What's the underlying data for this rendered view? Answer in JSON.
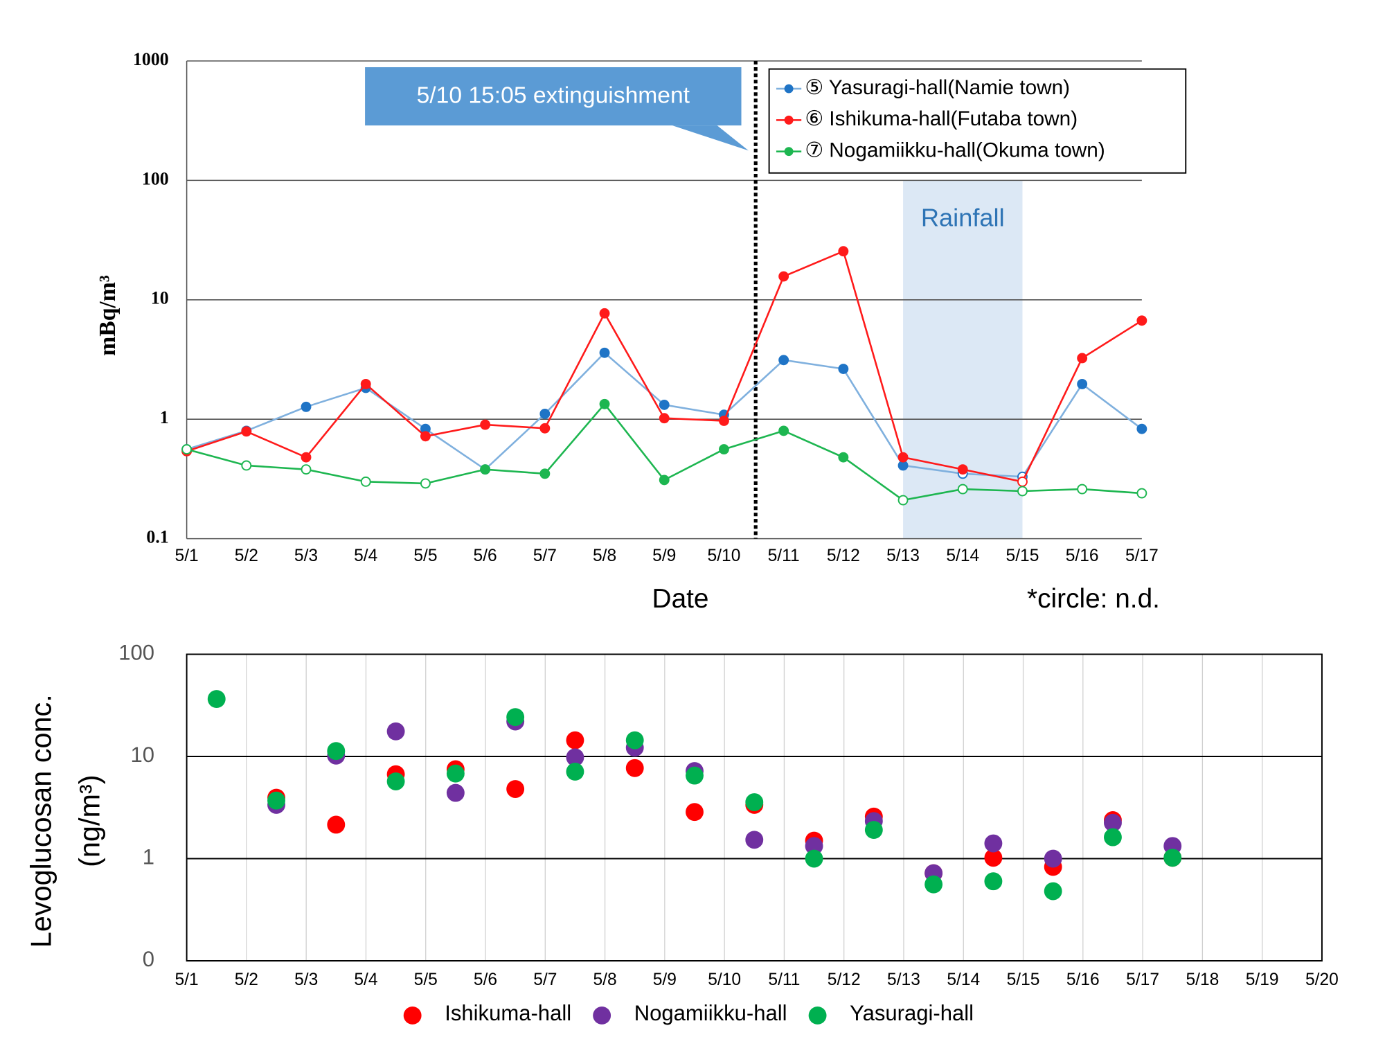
{
  "chart_data": [
    {
      "type": "line",
      "ylabel": "mBq/m³",
      "xlabel": "Date",
      "note": "*circle: n.d.",
      "annotation": "5/10 15:05 extinguishment",
      "shade": {
        "label": "Rainfall",
        "from": "5/13",
        "to": "5/15"
      },
      "categories": [
        "5/1",
        "5/2",
        "5/3",
        "5/4",
        "5/5",
        "5/6",
        "5/7",
        "5/8",
        "5/9",
        "5/10",
        "5/11",
        "5/12",
        "5/13",
        "5/14",
        "5/15",
        "5/16",
        "5/17"
      ],
      "ylim": [
        0.1,
        1000
      ],
      "yticks": [
        0.1,
        1,
        10,
        100,
        1000
      ],
      "log_scale": true,
      "grid": true,
      "legend": "top right",
      "series": [
        {
          "name": "⑤  Yasuragi-hall(Namie town)",
          "color": "#1f74c6",
          "line_color": "#7fb0de",
          "values": [
            0.56,
            0.8,
            1.27,
            1.83,
            0.83,
            0.38,
            1.11,
            3.6,
            1.32,
            1.09,
            3.13,
            2.64,
            0.41,
            0.35,
            0.33,
            1.97,
            0.83
          ],
          "open_markers": [
            false,
            false,
            false,
            false,
            false,
            false,
            false,
            false,
            false,
            false,
            false,
            false,
            false,
            true,
            true,
            false,
            false
          ]
        },
        {
          "name": "⑥  Ishikuma-hall(Futaba town)",
          "color": "#ff1a1a",
          "line_color": "#ff1a1a",
          "values": [
            0.54,
            0.79,
            0.48,
            1.97,
            0.72,
            0.9,
            0.84,
            7.7,
            1.02,
            0.97,
            15.7,
            25.5,
            0.48,
            0.38,
            0.3,
            3.25,
            6.7
          ],
          "open_markers": [
            false,
            false,
            false,
            false,
            false,
            false,
            false,
            false,
            false,
            false,
            false,
            false,
            false,
            false,
            true,
            false,
            false
          ]
        },
        {
          "name": "⑦  Nogamiikku-hall(Okuma town)",
          "color": "#1db650",
          "line_color": "#1db650",
          "values": [
            0.56,
            0.41,
            0.38,
            0.3,
            0.29,
            0.38,
            0.35,
            1.34,
            0.31,
            0.56,
            0.8,
            0.48,
            0.21,
            0.26,
            0.25,
            0.26,
            0.24
          ],
          "open_markers": [
            true,
            true,
            true,
            true,
            true,
            false,
            false,
            false,
            false,
            false,
            false,
            false,
            true,
            true,
            true,
            true,
            true
          ]
        }
      ]
    },
    {
      "type": "scatter",
      "ylabel": [
        "Levoglucosan conc.",
        "(ng/m³)"
      ],
      "categories": [
        "5/1",
        "5/2",
        "5/3",
        "5/4",
        "5/5",
        "5/6",
        "5/7",
        "5/8",
        "5/9",
        "5/10",
        "5/11",
        "5/12",
        "5/13",
        "5/14",
        "5/15",
        "5/16",
        "5/17",
        "5/18",
        "5/19",
        "5/20"
      ],
      "ylim": [
        0.1,
        100
      ],
      "yticks": [
        {
          "value": 0.1,
          "label": "0"
        },
        1,
        10,
        100
      ],
      "log_scale": true,
      "grid": true,
      "legend": "bottom",
      "series": [
        {
          "name": "Ishikuma-hall",
          "color": "#ff0000",
          "values": [
            null,
            3.95,
            2.15,
            6.7,
            7.5,
            4.8,
            14.4,
            7.7,
            2.86,
            3.36,
            1.5,
            2.58,
            0.72,
            1.02,
            0.83,
            2.38,
            1.02,
            null,
            null,
            null
          ]
        },
        {
          "name": "Nogamiikku-hall",
          "color": "#7030a0",
          "values": [
            null,
            3.36,
            10.2,
            17.6,
            4.4,
            22,
            9.8,
            12.2,
            7.2,
            1.53,
            1.33,
            2.33,
            0.72,
            1.41,
            1.0,
            2.24,
            1.33,
            null,
            null,
            null
          ]
        },
        {
          "name": "Yasuragi-hall",
          "color": "#00b050",
          "values": [
            36.5,
            3.7,
            11.3,
            5.7,
            6.8,
            24.3,
            7.1,
            14.4,
            6.5,
            3.57,
            1.0,
            1.91,
            0.56,
            0.6,
            0.48,
            1.62,
            1.02,
            null,
            null,
            null
          ]
        }
      ]
    }
  ]
}
